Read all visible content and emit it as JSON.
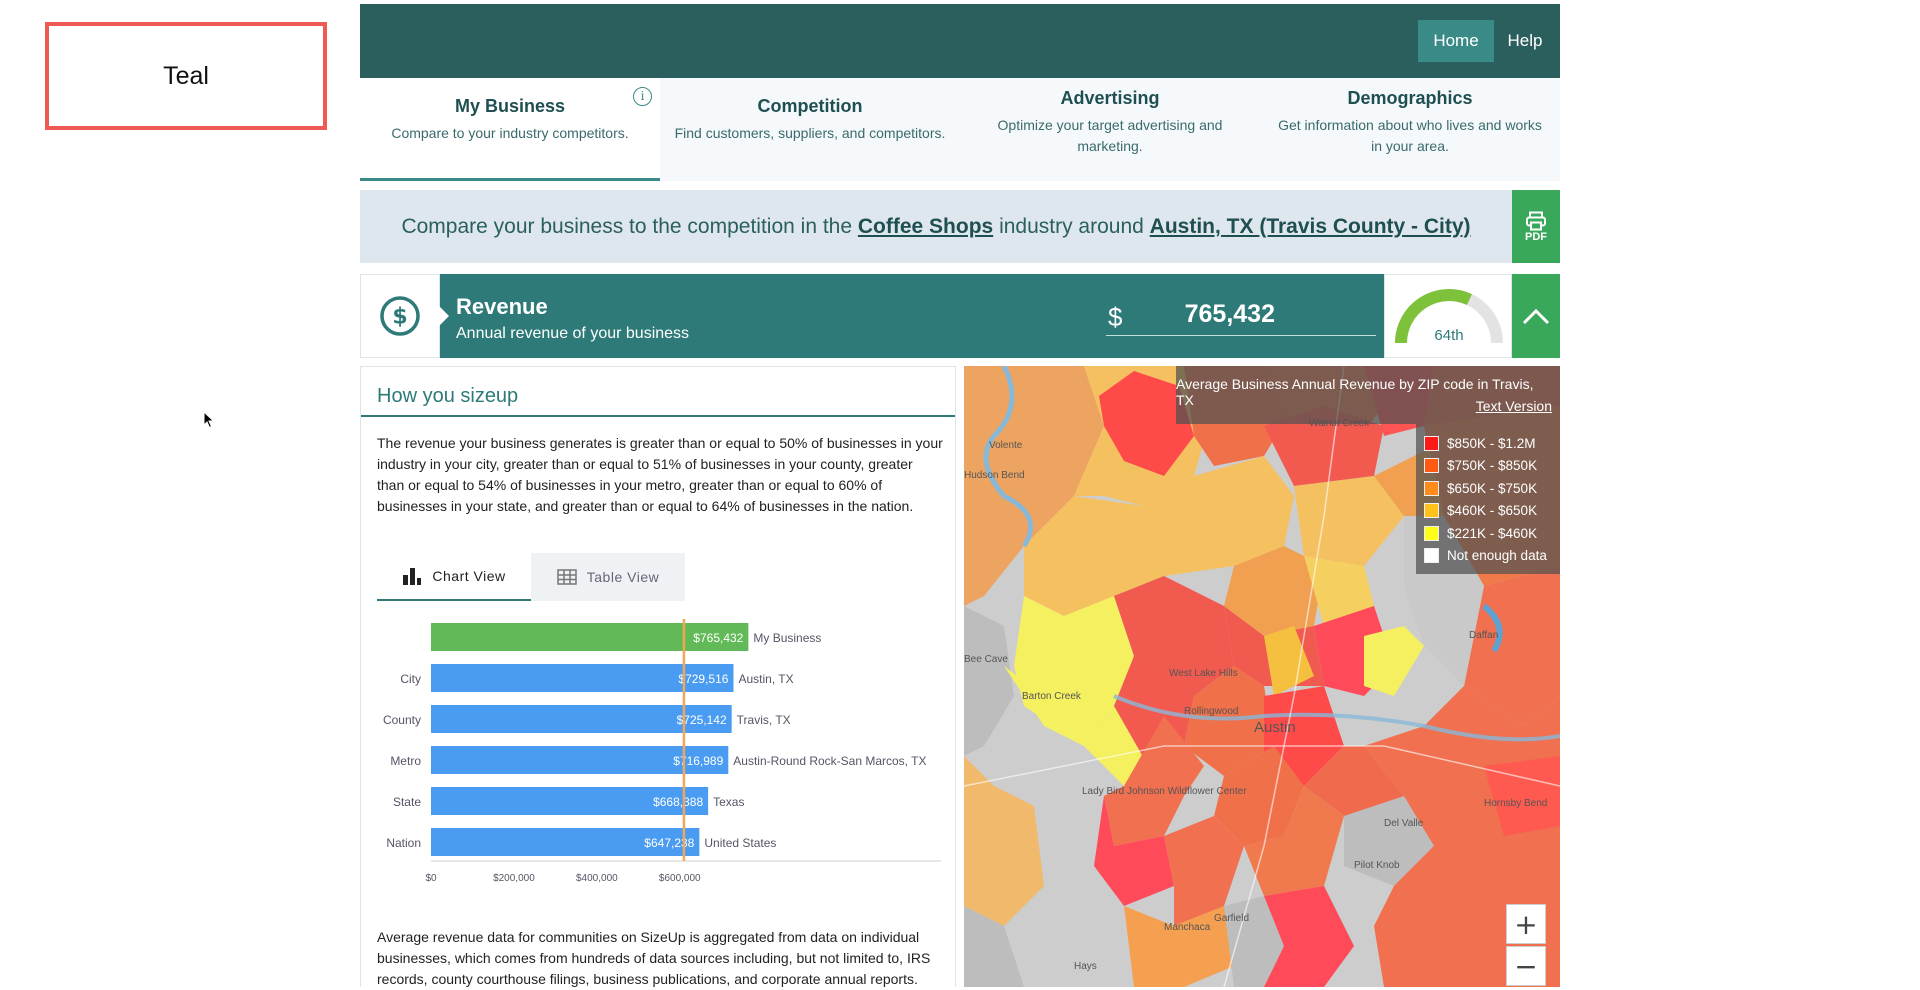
{
  "theme_tag": "Teal",
  "topnav": {
    "home": "Home",
    "help": "Help"
  },
  "tabs": [
    {
      "title": "My Business",
      "subtitle": "Compare to your industry competitors."
    },
    {
      "title": "Competition",
      "subtitle": "Find customers, suppliers, and competitors."
    },
    {
      "title": "Advertising",
      "subtitle": "Optimize your target advertising and marketing."
    },
    {
      "title": "Demographics",
      "subtitle": "Get information about who lives and works in your area."
    }
  ],
  "compare": {
    "prefix": "Compare your business to the competition in the",
    "industry": "Coffee Shops",
    "middle": "industry around",
    "location": "Austin, TX (Travis County - City)",
    "pdf_label": "PDF"
  },
  "revenue": {
    "title": "Revenue",
    "subtitle": "Annual revenue of your business",
    "currency": "$",
    "value": "765,432",
    "percentile_label": "64th",
    "percentile": 64
  },
  "panel": {
    "title": "How you sizeup",
    "summary": "The revenue your business generates is greater than or equal to 50% of businesses in your industry in your city, greater than or equal to 51% of businesses in your county, greater than or equal to 54% of businesses in your metro, greater than or equal to 60% of businesses in your state, and greater than or equal to 64% of businesses in the nation.",
    "chart_tab": "Chart View",
    "table_tab": "Table View",
    "footnote": "Average revenue data for communities on SizeUp is aggregated from data on individual businesses, which comes from hundreds of data sources including, but not limited to, IRS records, county courthouse filings, business publications, and corporate annual reports."
  },
  "chart_data": {
    "type": "bar",
    "orientation": "horizontal",
    "categories": [
      "",
      "City",
      "County",
      "Metro",
      "State",
      "Nation"
    ],
    "names": [
      "My Business",
      "Austin, TX",
      "Travis, TX",
      "Austin-Round Rock-San Marcos, TX",
      "Texas",
      "United States"
    ],
    "values": [
      765432,
      729516,
      725142,
      716989,
      668388,
      647238
    ],
    "labels": [
      "$765,432",
      "$729,516",
      "$725,142",
      "$716,989",
      "$668,388",
      "$647,238"
    ],
    "colors": [
      "#62b957",
      "#4a9cf2",
      "#4a9cf2",
      "#4a9cf2",
      "#4a9cf2",
      "#4a9cf2"
    ],
    "xticks": [
      "$0",
      "$200,000",
      "$400,000",
      "$600,000"
    ],
    "xtick_values": [
      0,
      200000,
      400000,
      600000
    ],
    "xlim": [
      0,
      1230000
    ],
    "reference_line": 610000,
    "reference_color": "#f2a65a"
  },
  "map": {
    "title": "Average Business Annual Revenue by ZIP code in Travis, TX",
    "text_version": "Text Version",
    "legend": [
      {
        "label": "$850K - $1.2M",
        "color": "#ff1a1a"
      },
      {
        "label": "$750K - $850K",
        "color": "#ff5a14"
      },
      {
        "label": "$650K - $750K",
        "color": "#ff8c1a"
      },
      {
        "label": "$460K - $650K",
        "color": "#ffc21a"
      },
      {
        "label": "$221K - $460K",
        "color": "#ffff1a"
      },
      {
        "label": "Not enough data",
        "color": "#ffffff"
      }
    ],
    "place_labels": [
      "Volente",
      "Hudson Bend",
      "Walnut Creek",
      "Barton Creek",
      "West Lake Hills",
      "Rollingwood",
      "Austin",
      "Daffan",
      "Lady Bird Johnson Wildflower Center",
      "Del Valle",
      "Hornsby Bend",
      "Pilot Knob",
      "Hays",
      "Manchaca",
      "Garfield",
      "Bee Cave"
    ],
    "zoom_in": "+",
    "zoom_out": "−"
  }
}
